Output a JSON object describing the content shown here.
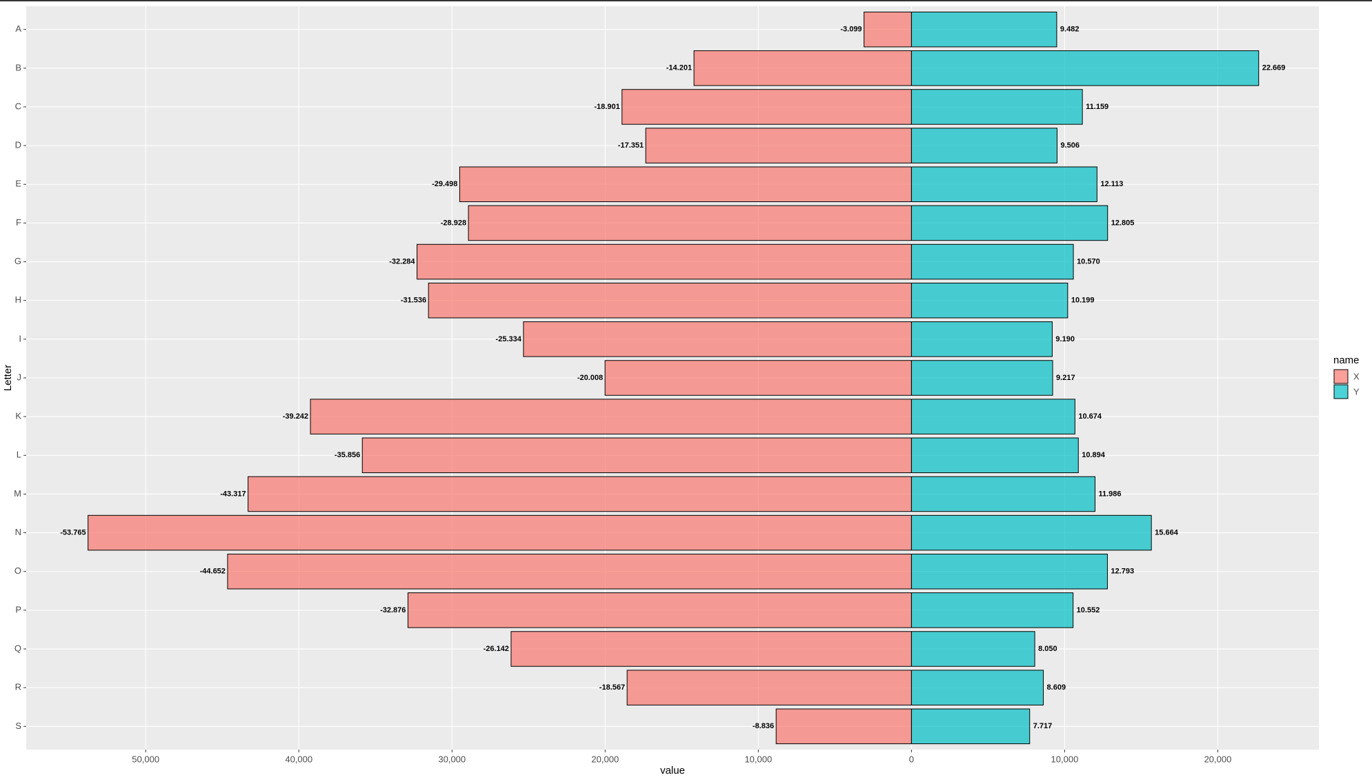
{
  "chart_data": {
    "type": "diverging-bar",
    "x_label": "value",
    "y_label": "Letter",
    "legend_title": "name",
    "categories": [
      "A",
      "B",
      "C",
      "D",
      "E",
      "F",
      "G",
      "H",
      "I",
      "J",
      "K",
      "L",
      "M",
      "N",
      "O",
      "P",
      "Q",
      "R",
      "S"
    ],
    "series": [
      {
        "name": "X",
        "color": "#F8766D",
        "values": [
          -3099,
          -14201,
          -18901,
          -17351,
          -29498,
          -28928,
          -32284,
          -31536,
          -25334,
          -20008,
          -39242,
          -35856,
          -43317,
          -53765,
          -44652,
          -32876,
          -26142,
          -18567,
          -8836
        ],
        "value_labels": [
          "-3.099",
          "-14.201",
          "-18.901",
          "-17.351",
          "-29.498",
          "-28.928",
          "-32.284",
          "-31.536",
          "-25.334",
          "-20.008",
          "-39.242",
          "-35.856",
          "-43.317",
          "-53.765",
          "-44.652",
          "-32.876",
          "-26.142",
          "-18.567",
          "-8.836"
        ]
      },
      {
        "name": "Y",
        "color": "#00BFC4",
        "values": [
          9482,
          22669,
          11159,
          9506,
          12113,
          12805,
          10570,
          10199,
          9190,
          9217,
          10674,
          10894,
          11986,
          15664,
          12793,
          10552,
          8050,
          8609,
          7717
        ],
        "value_labels": [
          "9.482",
          "22.669",
          "11.159",
          "9.506",
          "12.113",
          "12.805",
          "10.570",
          "10.199",
          "9.190",
          "9.217",
          "10.674",
          "10.894",
          "11.986",
          "15.664",
          "12.793",
          "10.552",
          "8.050",
          "8.609",
          "7.717"
        ]
      }
    ],
    "xlim": [
      -57800,
      26600
    ],
    "xticks": [
      {
        "value": -50000,
        "label": "50,000"
      },
      {
        "value": -40000,
        "label": "40,000"
      },
      {
        "value": -30000,
        "label": "30,000"
      },
      {
        "value": -20000,
        "label": "20,000"
      },
      {
        "value": -10000,
        "label": "10,000"
      },
      0,
      {
        "value": 10000,
        "label": "10,000"
      },
      {
        "value": 20000,
        "label": "20,000"
      }
    ],
    "grid": true
  }
}
